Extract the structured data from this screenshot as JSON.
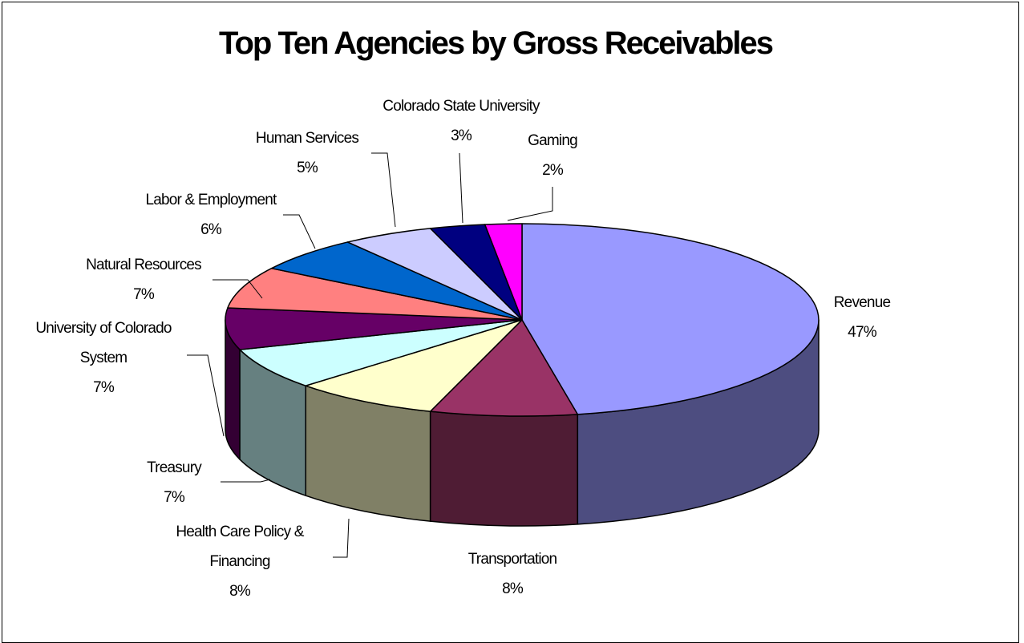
{
  "chart_data": {
    "type": "pie",
    "title": "Top Ten Agencies by Gross Receivables",
    "legend": "none",
    "slices": [
      {
        "label": [
          "Revenue"
        ],
        "percent_label": "47%",
        "value": 47,
        "color": "#9999ff",
        "side_color": "#4d4d80"
      },
      {
        "label": [
          "Transportation"
        ],
        "percent_label": "8%",
        "value": 8,
        "color": "#993366",
        "side_color": "#4f1c34"
      },
      {
        "label": [
          "Health Care Policy &",
          "Financing"
        ],
        "percent_label": "8%",
        "value": 8,
        "color": "#ffffcc",
        "side_color": "#808066"
      },
      {
        "label": [
          "Treasury"
        ],
        "percent_label": "7%",
        "value": 7,
        "color": "#ccffff",
        "side_color": "#668080"
      },
      {
        "label": [
          "University of Colorado",
          "System"
        ],
        "percent_label": "7%",
        "value": 7,
        "color": "#660066",
        "side_color": "#330033"
      },
      {
        "label": [
          "Natural Resources"
        ],
        "percent_label": "7%",
        "value": 7,
        "color": "#ff8080",
        "side_color": "#804040"
      },
      {
        "label": [
          "Labor & Employment"
        ],
        "percent_label": "6%",
        "value": 6,
        "color": "#0066cc",
        "side_color": "#003366"
      },
      {
        "label": [
          "Human Services"
        ],
        "percent_label": "5%",
        "value": 5,
        "color": "#ccccff",
        "side_color": "#666680"
      },
      {
        "label": [
          "Colorado State University"
        ],
        "percent_label": "3%",
        "value": 3,
        "color": "#000080",
        "side_color": "#000040"
      },
      {
        "label": [
          "Gaming"
        ],
        "percent_label": "2%",
        "value": 2,
        "color": "#ff00ff",
        "side_color": "#800080"
      }
    ]
  }
}
